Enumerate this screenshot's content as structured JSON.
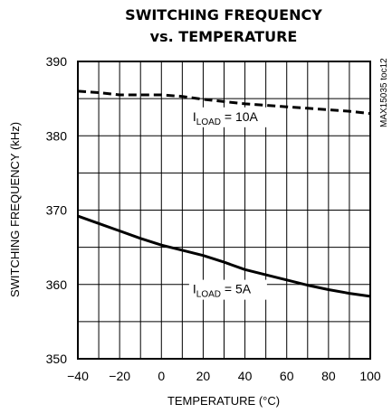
{
  "chart_data": {
    "type": "line",
    "title_line1": "SWITCHING FREQUENCY",
    "title_line2": "vs. TEMPERATURE",
    "xlabel": "TEMPERATURE (°C)",
    "ylabel": "SWITCHING FREQUENCY (kHz)",
    "xlim": [
      -40,
      100
    ],
    "ylim": [
      350,
      390
    ],
    "x_ticks": [
      -40,
      -20,
      0,
      20,
      40,
      60,
      80,
      100
    ],
    "y_ticks": [
      350,
      360,
      370,
      380,
      390
    ],
    "grid": true,
    "figure_note": "MAX15035 toc12",
    "series": [
      {
        "label_main": "I",
        "label_sub": "LOAD",
        "label_value": " = 10A",
        "style": "dashed",
        "x": [
          -40,
          -30,
          -20,
          -10,
          0,
          10,
          20,
          30,
          40,
          50,
          60,
          70,
          80,
          90,
          100
        ],
        "y": [
          386.0,
          385.8,
          385.5,
          385.5,
          385.5,
          385.3,
          384.9,
          384.6,
          384.3,
          384.1,
          383.9,
          383.7,
          383.5,
          383.3,
          383.0
        ]
      },
      {
        "label_main": "I",
        "label_sub": "LOAD",
        "label_value": " = 5A",
        "style": "solid",
        "x": [
          -40,
          -30,
          -20,
          -10,
          0,
          10,
          20,
          30,
          40,
          50,
          60,
          70,
          80,
          90,
          100
        ],
        "y": [
          369.2,
          368.2,
          367.2,
          366.2,
          365.3,
          364.6,
          363.9,
          363.0,
          362.0,
          361.3,
          360.6,
          359.9,
          359.3,
          358.8,
          358.4
        ]
      }
    ]
  }
}
